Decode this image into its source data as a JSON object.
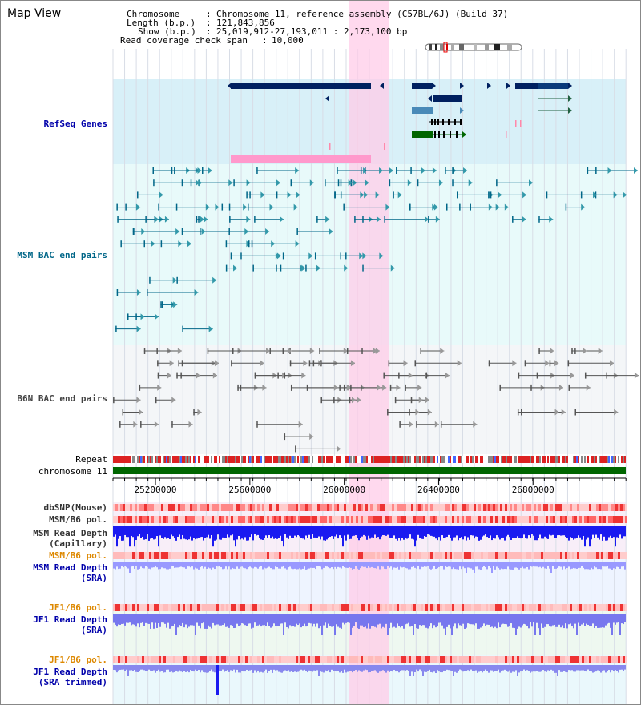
{
  "page": {
    "title": "Map View"
  },
  "info": {
    "chromosome_key": "Chromosome",
    "chromosome_val": "Chromosome 11, reference assembly (C57BL/6J) (Build 37)",
    "length_key": "Length (b.p.)",
    "length_val": "121,843,856",
    "show_key": "Show (b.p.)",
    "show_val": "25,019,912-27,193,011 : 2,173,100 bp",
    "span_key": "Read coverage check span",
    "span_val": "10,000"
  },
  "axis": {
    "start_bp": 25019912,
    "end_bp": 27193011,
    "ticks": [
      "25200000",
      "25600000",
      "26000000",
      "26400000",
      "26800000"
    ],
    "tick_values": [
      25200000,
      25600000,
      26000000,
      26400000,
      26800000
    ],
    "highlight_bp": [
      26019912,
      26189912
    ]
  },
  "tracks": {
    "refseq": {
      "label": "RefSeq Genes",
      "color": "#0000aa"
    },
    "msm_bac": {
      "label": "MSM BAC end pairs",
      "color": "#006688"
    },
    "b6n_bac": {
      "label": "B6N BAC end pairs",
      "color": "#444444"
    },
    "repeat": {
      "label": "Repeat"
    },
    "chromosome": {
      "label": "chromosome 11",
      "color": "#006600"
    },
    "dbsnp": {
      "label": "dbSNP(Mouse)"
    },
    "msm_b6_pol": {
      "label": "MSM/B6 pol."
    },
    "msm_depth_cap": {
      "label": "MSM Read Depth\n(Capillary)"
    },
    "msm_b6_pol2": {
      "label": "MSM/B6 pol.",
      "color": "#dd8800"
    },
    "msm_depth_sra": {
      "label": "MSM Read Depth\n(SRA)",
      "color": "#0000aa"
    },
    "jf1_b6_pol": {
      "label": "JF1/B6 pol.",
      "color": "#dd8800"
    },
    "jf1_depth_sra": {
      "label": "JF1 Read Depth\n(SRA)",
      "color": "#0000aa"
    },
    "jf1_b6_pol2": {
      "label": "JF1/B6 pol.",
      "color": "#dd8800"
    },
    "jf1_depth_trim": {
      "label": "JF1 Read Depth\n(SRA trimmed)",
      "color": "#0000aa"
    }
  },
  "colors": {
    "refseq_bg": "#d8f0f8",
    "msm_bg": "#e8fafa",
    "b6n_bg": "#f4f6f8",
    "highlight": "#ffcce8",
    "gene_dark": "#002060",
    "depth_blue": "#1a1af0",
    "depth_light": "#8888ff",
    "snp_red": "#ee3333"
  }
}
